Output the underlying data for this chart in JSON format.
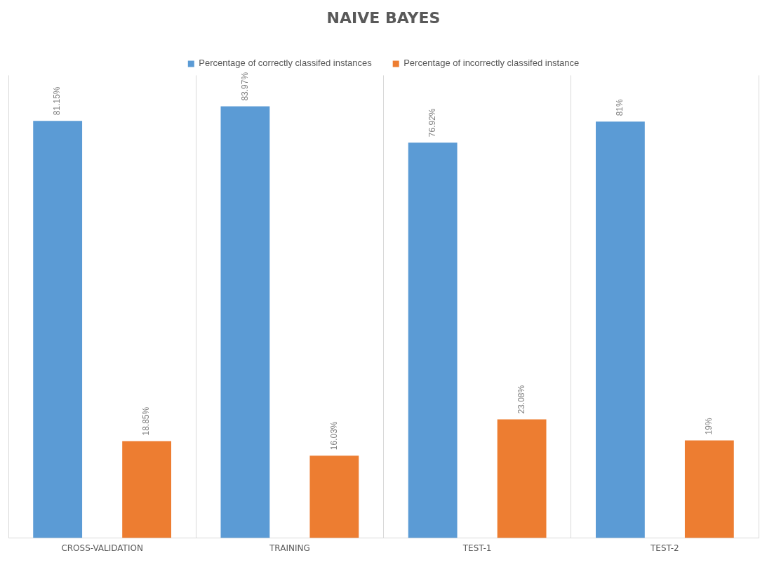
{
  "chart_data": {
    "type": "bar",
    "title": "NAIVE BAYES",
    "categories": [
      "CROSS-VALIDATION",
      "TRAINING",
      "TEST-1",
      "TEST-2"
    ],
    "series": [
      {
        "name": "Percentage of correctly classifed instances",
        "color": "#5b9bd5",
        "values": [
          81.15,
          83.97,
          76.92,
          81
        ],
        "value_labels": [
          "81.15%",
          "83.97%",
          "76.92%",
          "81%"
        ]
      },
      {
        "name": "Percentage of incorrectly classifed instance",
        "color": "#ed7d31",
        "values": [
          18.85,
          16.03,
          23.08,
          19
        ],
        "value_labels": [
          "18.85%",
          "16.03%",
          "23.08%",
          "19%"
        ]
      }
    ],
    "ylim": [
      0,
      90
    ],
    "tick_labels": "x",
    "grid": "x",
    "legend": "top"
  }
}
